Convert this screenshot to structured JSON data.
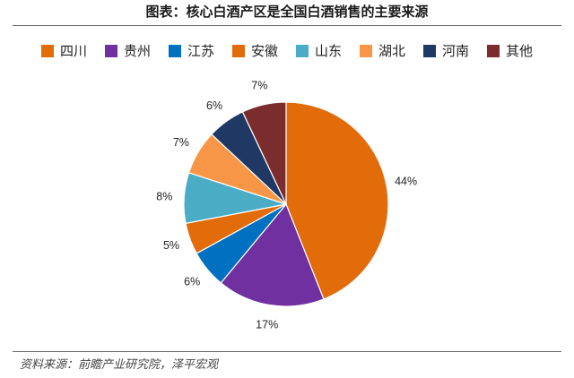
{
  "title": "图表：核心白酒产区是全国白酒销售的主要来源",
  "source": "资料来源：前瞻产业研究院，泽平宏观",
  "chart_data": {
    "type": "pie",
    "title": "图表：核心白酒产区是全国白酒销售的主要来源",
    "legend_position": "top",
    "start_angle_deg": 0,
    "direction": "clockwise",
    "slices": [
      {
        "label": "四川",
        "value": 44,
        "display": "44%",
        "color": "#E26B0A"
      },
      {
        "label": "贵州",
        "value": 17,
        "display": "17%",
        "color": "#7030A0"
      },
      {
        "label": "江苏",
        "value": 6,
        "display": "6%",
        "color": "#0070C0"
      },
      {
        "label": "安徽",
        "value": 5,
        "display": "5%",
        "color": "#E26B0A"
      },
      {
        "label": "山东",
        "value": 8,
        "display": "8%",
        "color": "#4BACC6"
      },
      {
        "label": "湖北",
        "value": 7,
        "display": "7%",
        "color": "#F79646"
      },
      {
        "label": "河南",
        "value": 6,
        "display": "6%",
        "color": "#1F3864"
      },
      {
        "label": "其他",
        "value": 7,
        "display": "7%",
        "color": "#7B2C2C"
      }
    ]
  }
}
